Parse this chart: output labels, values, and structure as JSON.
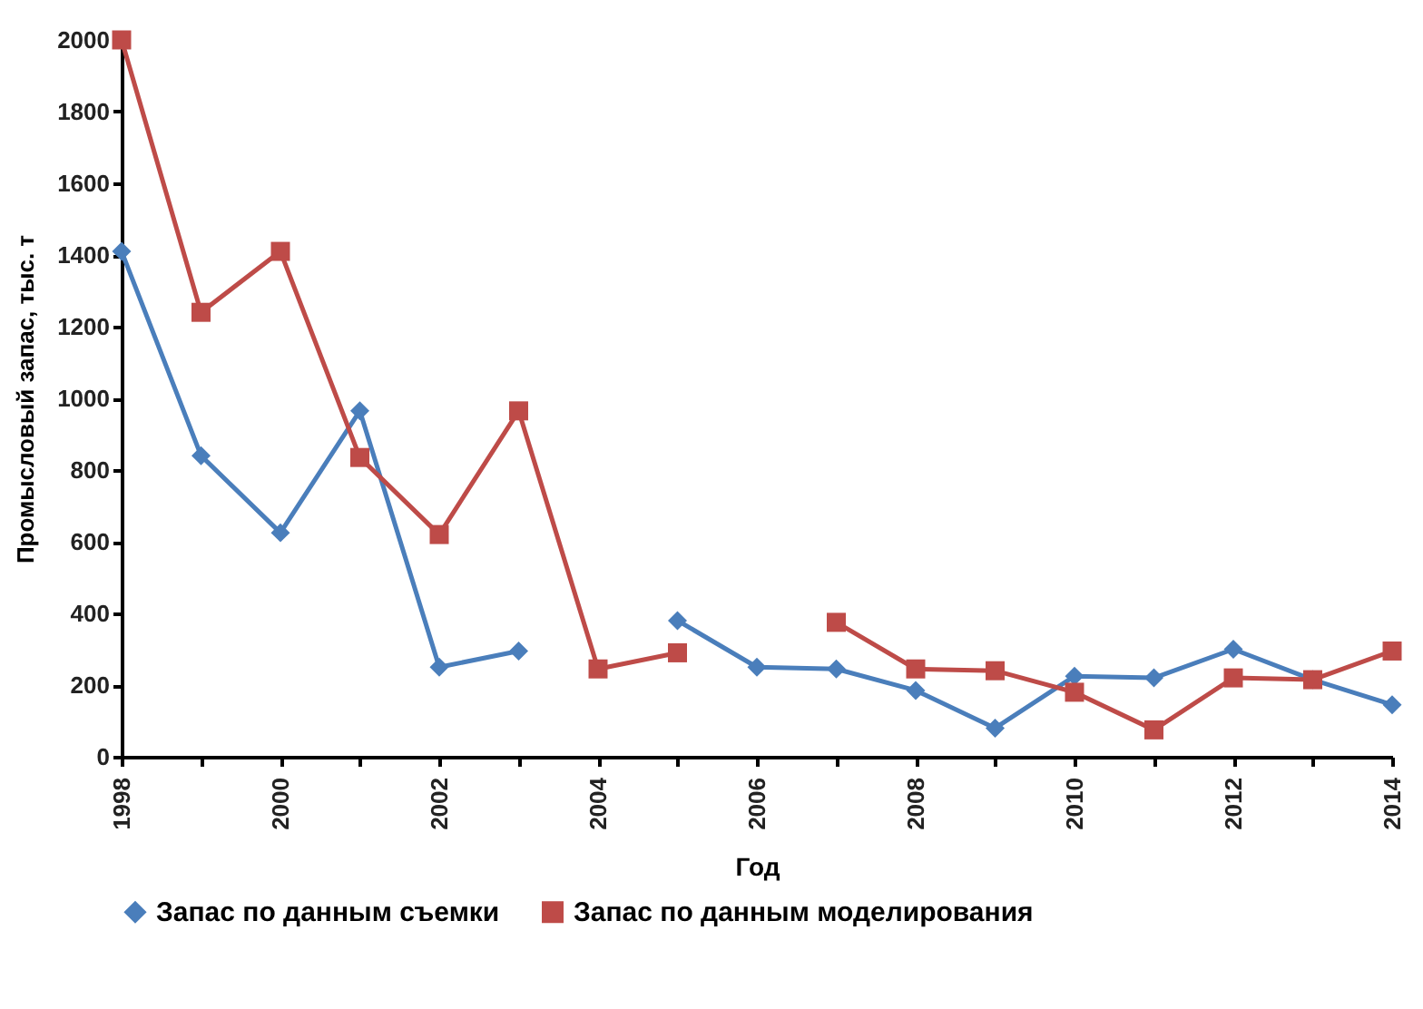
{
  "chart_data": {
    "type": "line",
    "xlabel": "Год",
    "ylabel": "Промысловый запас, тыс. т",
    "x": [
      1998,
      1999,
      2000,
      2001,
      2002,
      2003,
      2004,
      2005,
      2006,
      2007,
      2008,
      2009,
      2010,
      2011,
      2012,
      2013,
      2014
    ],
    "series": [
      {
        "name": "Запас по данным съемки",
        "color": "#4a7ebb",
        "marker": "diamond",
        "values": [
          1410,
          840,
          625,
          965,
          250,
          295,
          null,
          380,
          250,
          245,
          185,
          80,
          225,
          220,
          300,
          215,
          145
        ]
      },
      {
        "name": "Запас по данным моделирования",
        "color": "#be4b48",
        "marker": "square",
        "values": [
          2000,
          1240,
          1410,
          835,
          620,
          965,
          245,
          290,
          null,
          375,
          245,
          240,
          180,
          75,
          220,
          215,
          295
        ]
      }
    ],
    "xlim": [
      1998,
      2014
    ],
    "xticks": [
      1998,
      {
        "value": 1999,
        "label": null
      },
      2000,
      {
        "value": 2001,
        "label": null
      },
      2002,
      {
        "value": 2003,
        "label": null
      },
      2004,
      {
        "value": 2005,
        "label": null
      },
      2006,
      {
        "value": 2007,
        "label": null
      },
      2008,
      {
        "value": 2009,
        "label": null
      },
      2010,
      {
        "value": 2011,
        "label": null
      },
      2012,
      {
        "value": 2013,
        "label": null
      },
      2014
    ],
    "ylim": [
      0,
      2000
    ],
    "yticks": [
      0,
      200,
      400,
      600,
      800,
      1000,
      1200,
      1400,
      1600,
      1800,
      2000
    ],
    "grid": false,
    "legend": "bottom",
    "line_style": "solid"
  }
}
